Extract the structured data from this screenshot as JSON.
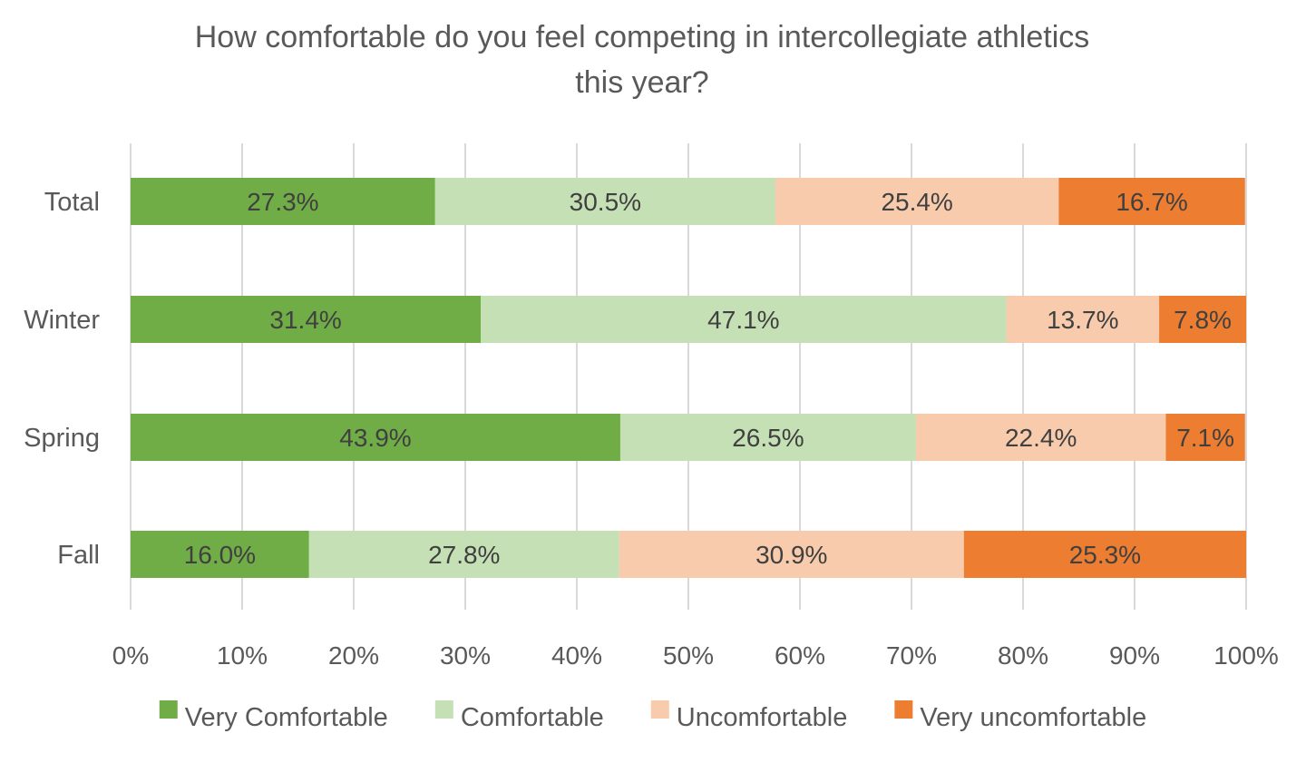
{
  "chart_data": {
    "type": "bar",
    "orientation": "horizontal",
    "stacked": "percent",
    "title": "How comfortable do you feel competing in intercollegiate athletics this year?",
    "title_lines": [
      "How comfortable do you feel competing in intercollegiate athletics",
      "this year?"
    ],
    "categories": [
      "Total",
      "Winter",
      "Spring",
      "Fall"
    ],
    "series": [
      {
        "name": "Very Comfortable",
        "color": "#70ad47",
        "values": [
          27.3,
          31.4,
          43.9,
          16.0
        ],
        "labels": [
          "27.3%",
          "31.4%",
          "43.9%",
          "16.0%"
        ]
      },
      {
        "name": "Comfortable",
        "color": "#c5e0b4",
        "values": [
          30.5,
          47.1,
          26.5,
          27.8
        ],
        "labels": [
          "30.5%",
          "47.1%",
          "26.5%",
          "27.8%"
        ]
      },
      {
        "name": "Uncomfortable",
        "color": "#f8cbad",
        "values": [
          25.4,
          13.7,
          22.4,
          30.9
        ],
        "labels": [
          "25.4%",
          "13.7%",
          "22.4%",
          "30.9%"
        ]
      },
      {
        "name": "Very uncomfortable",
        "color": "#ed7d31",
        "values": [
          16.7,
          7.8,
          7.1,
          25.3
        ],
        "labels": [
          "16.7%",
          "7.8%",
          "7.1%",
          "25.3%"
        ]
      }
    ],
    "xlim": [
      0,
      100
    ],
    "xticks": [
      "0%",
      "10%",
      "20%",
      "30%",
      "40%",
      "50%",
      "60%",
      "70%",
      "80%",
      "90%",
      "100%"
    ],
    "xlabel": "",
    "ylabel": "",
    "grid": true,
    "legend": "bottom",
    "colors": {
      "gridline": "#d9d9d9",
      "text": "#595959",
      "data_label": "#404040"
    }
  }
}
